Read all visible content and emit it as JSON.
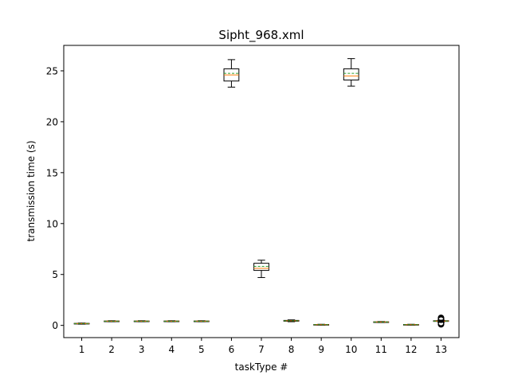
{
  "chart_data": {
    "type": "box",
    "title": "Sipht_968.xml",
    "xlabel": "taskType #",
    "ylabel": "transmission time (s)",
    "ylim": [
      -1.2,
      27.5
    ],
    "yticks": [
      0,
      5,
      10,
      15,
      20,
      25
    ],
    "categories": [
      "1",
      "2",
      "3",
      "4",
      "5",
      "6",
      "7",
      "8",
      "9",
      "10",
      "11",
      "12",
      "13"
    ],
    "boxes": [
      {
        "category": "1",
        "whislo": 0.12,
        "q1": 0.15,
        "median": 0.18,
        "mean": 0.18,
        "q3": 0.2,
        "whishi": 0.23,
        "fliers": []
      },
      {
        "category": "2",
        "whislo": 0.36,
        "q1": 0.39,
        "median": 0.41,
        "mean": 0.41,
        "q3": 0.43,
        "whishi": 0.46,
        "fliers": []
      },
      {
        "category": "3",
        "whislo": 0.36,
        "q1": 0.39,
        "median": 0.41,
        "mean": 0.41,
        "q3": 0.43,
        "whishi": 0.46,
        "fliers": []
      },
      {
        "category": "4",
        "whislo": 0.36,
        "q1": 0.39,
        "median": 0.41,
        "mean": 0.41,
        "q3": 0.43,
        "whishi": 0.46,
        "fliers": []
      },
      {
        "category": "5",
        "whislo": 0.36,
        "q1": 0.39,
        "median": 0.41,
        "mean": 0.41,
        "q3": 0.43,
        "whishi": 0.46,
        "fliers": []
      },
      {
        "category": "6",
        "whislo": 23.4,
        "q1": 24.0,
        "median": 24.6,
        "mean": 24.75,
        "q3": 25.2,
        "whishi": 26.1,
        "fliers": []
      },
      {
        "category": "7",
        "whislo": 4.7,
        "q1": 5.4,
        "median": 5.6,
        "mean": 5.8,
        "q3": 6.1,
        "whishi": 6.4,
        "fliers": []
      },
      {
        "category": "8",
        "whislo": 0.36,
        "q1": 0.41,
        "median": 0.45,
        "mean": 0.45,
        "q3": 0.49,
        "whishi": 0.54,
        "fliers": []
      },
      {
        "category": "9",
        "whislo": 0.03,
        "q1": 0.05,
        "median": 0.07,
        "mean": 0.07,
        "q3": 0.09,
        "whishi": 0.11,
        "fliers": []
      },
      {
        "category": "10",
        "whislo": 23.5,
        "q1": 24.1,
        "median": 24.5,
        "mean": 24.75,
        "q3": 25.2,
        "whishi": 26.2,
        "fliers": []
      },
      {
        "category": "11",
        "whislo": 0.28,
        "q1": 0.31,
        "median": 0.33,
        "mean": 0.33,
        "q3": 0.35,
        "whishi": 0.38,
        "fliers": []
      },
      {
        "category": "12",
        "whislo": 0.03,
        "q1": 0.05,
        "median": 0.07,
        "mean": 0.07,
        "q3": 0.09,
        "whishi": 0.11,
        "fliers": []
      },
      {
        "category": "13",
        "whislo": 0.34,
        "q1": 0.39,
        "median": 0.42,
        "mean": 0.42,
        "q3": 0.46,
        "whishi": 0.5,
        "fliers": [
          0.1,
          0.15,
          0.2,
          0.25,
          0.55,
          0.6,
          0.65,
          0.7,
          0.75
        ]
      }
    ],
    "median_color": "#ff7f0e",
    "mean_color": "#2ca02c",
    "mean_linestyle": "dashed",
    "grid": false,
    "legend": "none"
  }
}
